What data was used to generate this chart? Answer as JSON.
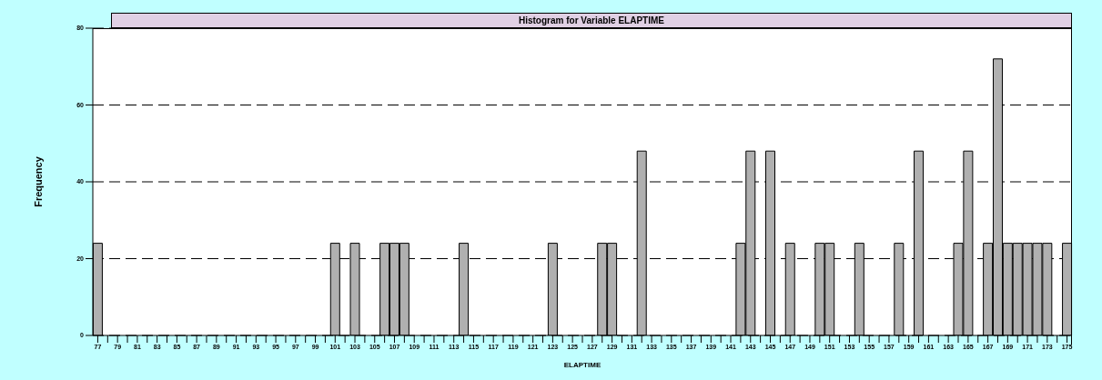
{
  "chart_data": {
    "type": "bar",
    "title": "Histogram for Variable ELAPTIME",
    "xlabel": "ELAPTIME",
    "ylabel": "Frequency",
    "categories": [
      "77",
      null,
      "79",
      null,
      "81",
      null,
      "83",
      null,
      "85",
      null,
      "87",
      null,
      "89",
      null,
      "91",
      null,
      "93",
      null,
      "95",
      null,
      "97",
      null,
      "99",
      null,
      "101",
      null,
      "103",
      null,
      "105",
      null,
      "107",
      null,
      "109",
      null,
      "111",
      null,
      "113",
      null,
      "115",
      null,
      "117",
      null,
      "119",
      null,
      "121",
      null,
      "123",
      null,
      "125",
      null,
      "127",
      null,
      "129",
      null,
      "131",
      null,
      "133",
      null,
      "135",
      null,
      "137",
      null,
      "139",
      null,
      "141",
      null,
      "143",
      null,
      "145",
      null,
      "147",
      null,
      "149",
      null,
      "151",
      null,
      "153",
      null,
      "155",
      null,
      "157",
      null,
      "159",
      null,
      "161",
      null,
      "163",
      null,
      "165",
      null,
      "167",
      null,
      "169",
      null,
      "171",
      null,
      "173",
      null,
      "175"
    ],
    "values": [
      24,
      0,
      0,
      0,
      0,
      0,
      0,
      0,
      0,
      0,
      0,
      0,
      0,
      0,
      0,
      0,
      0,
      0,
      0,
      0,
      0,
      0,
      0,
      0,
      24,
      0,
      24,
      0,
      0,
      24,
      24,
      24,
      0,
      0,
      0,
      0,
      0,
      24,
      0,
      0,
      0,
      0,
      0,
      0,
      0,
      0,
      24,
      0,
      0,
      0,
      0,
      24,
      24,
      0,
      0,
      48,
      0,
      0,
      0,
      0,
      0,
      0,
      0,
      0,
      0,
      24,
      48,
      0,
      48,
      0,
      24,
      0,
      0,
      24,
      24,
      0,
      0,
      24,
      0,
      0,
      0,
      24,
      0,
      48,
      0,
      0,
      0,
      24,
      48,
      0,
      24,
      72,
      24,
      24,
      24,
      24,
      24,
      0,
      24
    ],
    "color": "#b0b0b0",
    "ylim": [
      0,
      80
    ],
    "yticks": [
      0,
      20,
      40,
      60,
      80
    ],
    "grid": "y",
    "line_style": "dashed"
  }
}
